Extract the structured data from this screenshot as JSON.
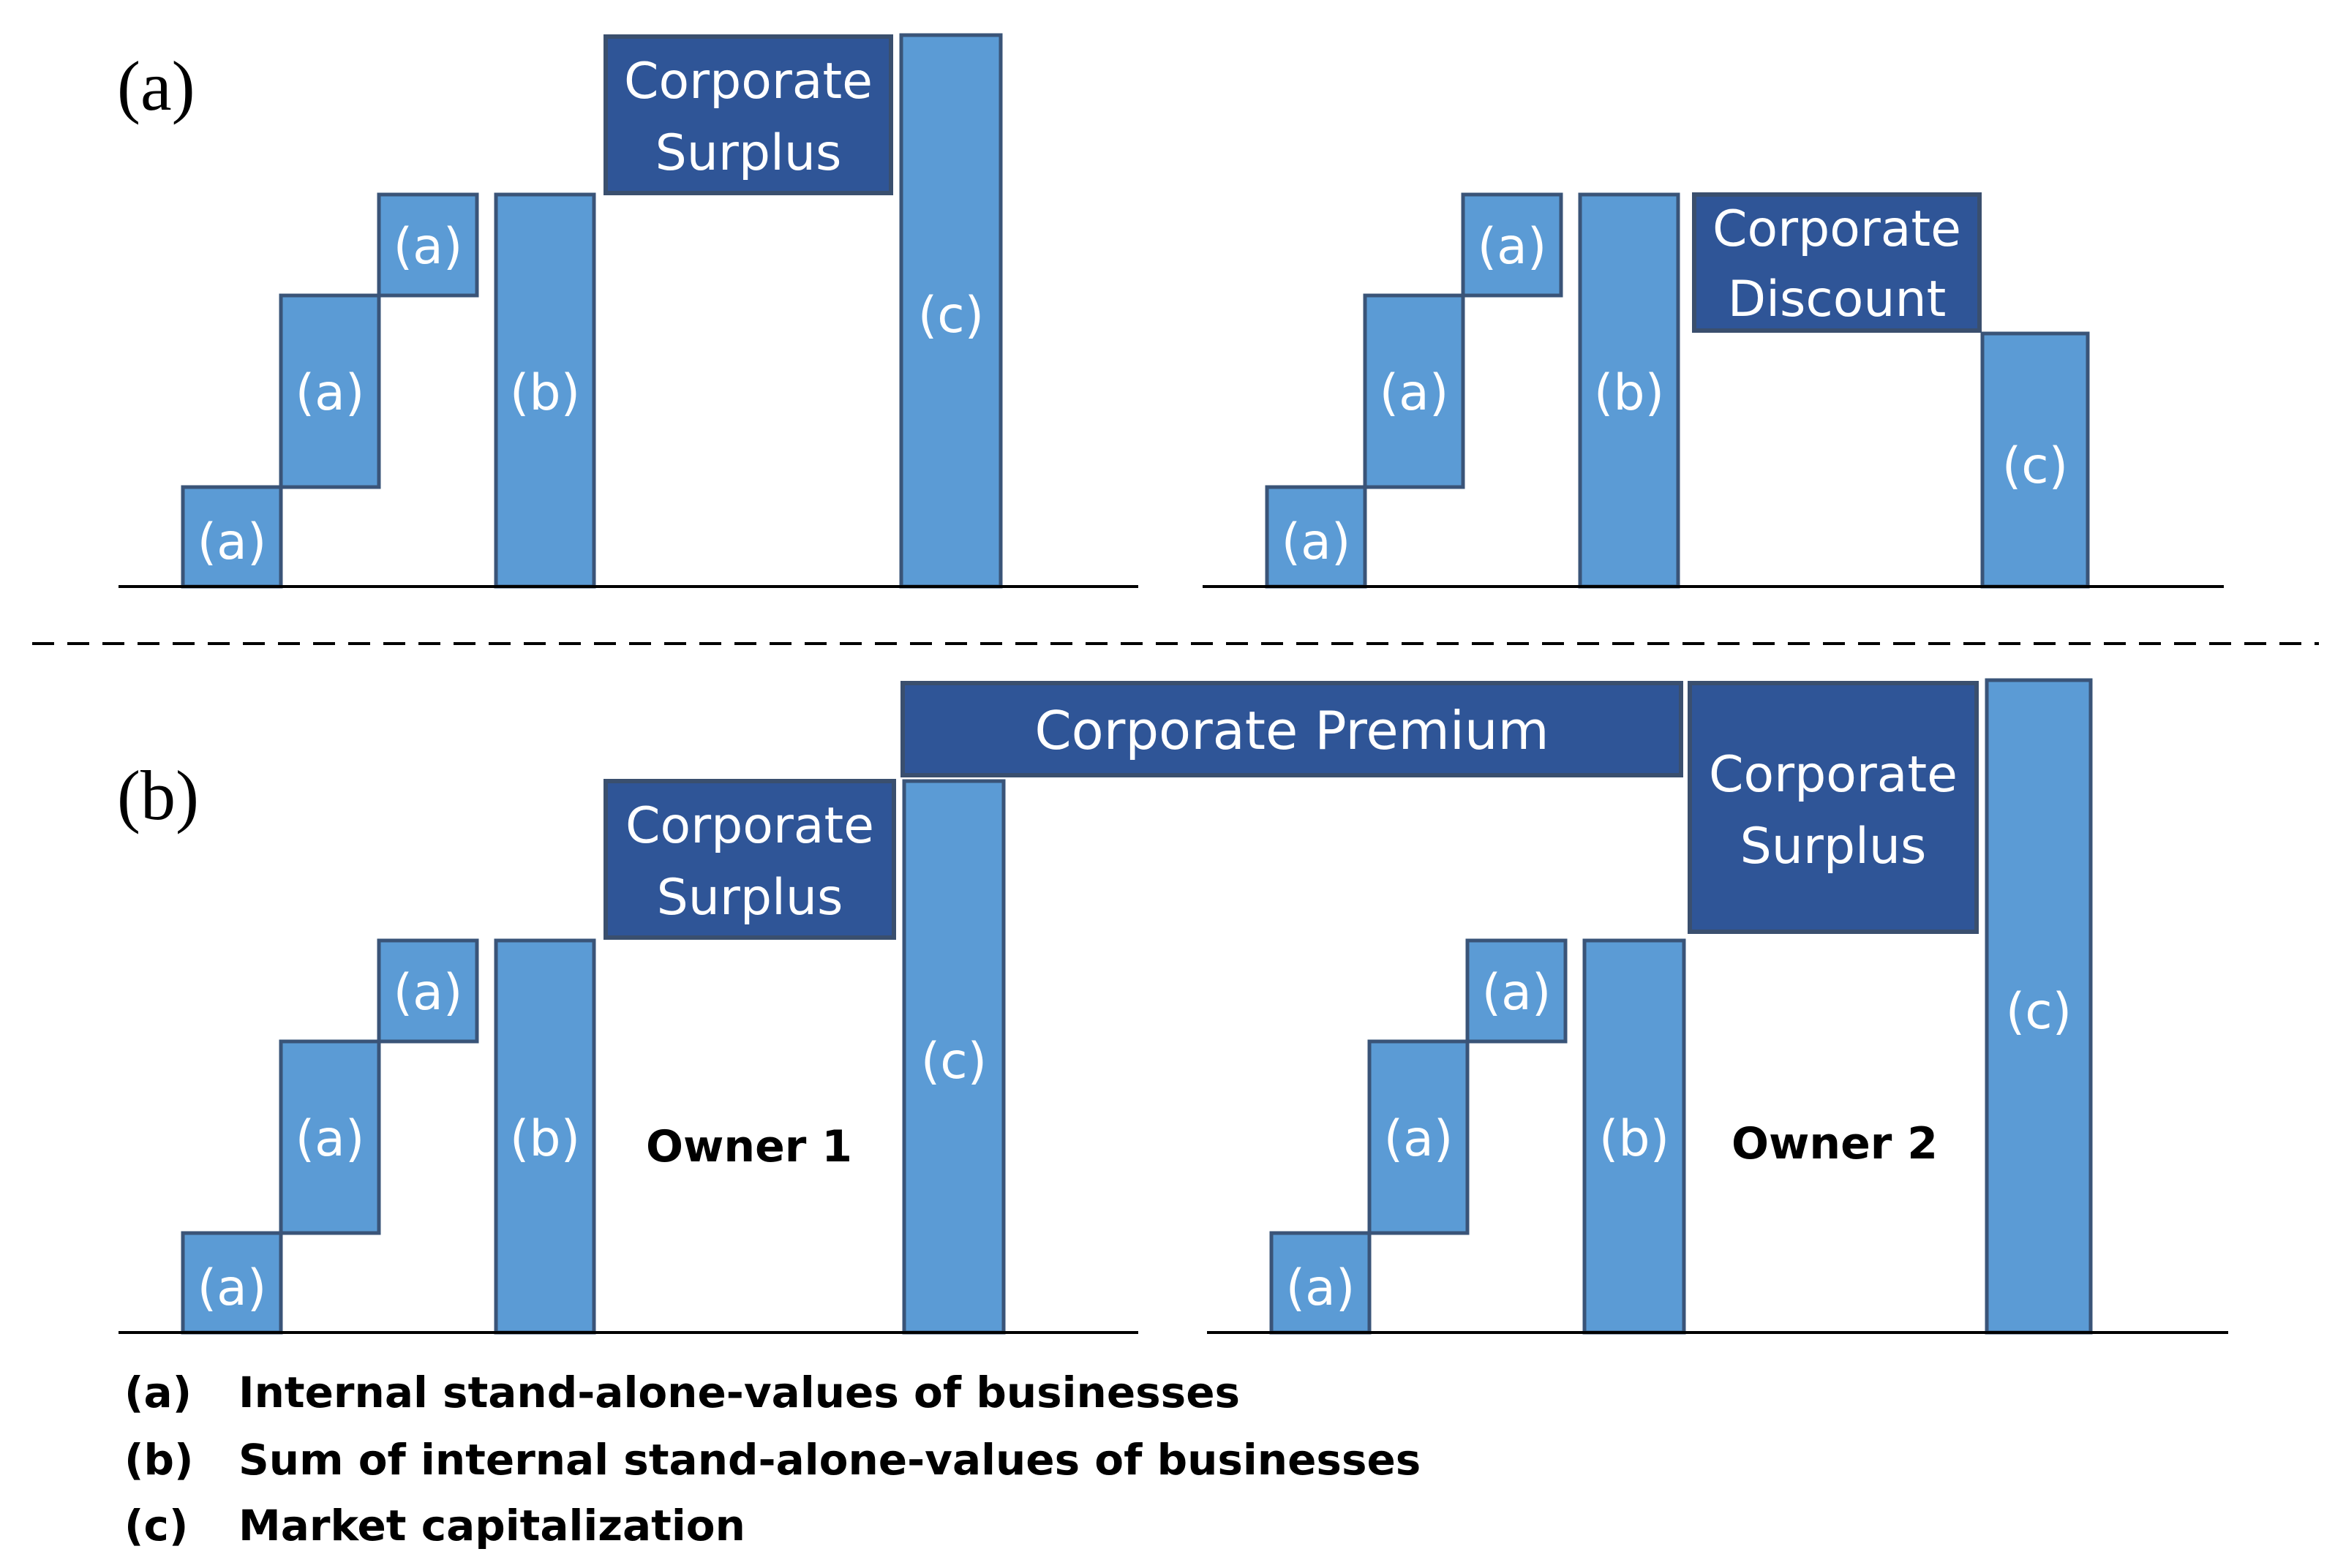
{
  "panel_a": {
    "label": "(a)",
    "left": {
      "bars": [
        "(a)",
        "(a)",
        "(a)",
        "(b)",
        "(c)"
      ],
      "box": [
        "Corporate",
        "Surplus"
      ]
    },
    "right": {
      "bars": [
        "(a)",
        "(a)",
        "(a)",
        "(b)",
        "(c)"
      ],
      "box": [
        "Corporate",
        "Discount"
      ]
    }
  },
  "panel_b": {
    "label": "(b)",
    "premium": "Corporate Premium",
    "owner1": {
      "name": "Owner 1",
      "bars": [
        "(a)",
        "(a)",
        "(a)",
        "(b)",
        "(c)"
      ],
      "box": [
        "Corporate",
        "Surplus"
      ]
    },
    "owner2": {
      "name": "Owner 2",
      "bars": [
        "(a)",
        "(a)",
        "(a)",
        "(b)",
        "(c)"
      ],
      "box": [
        "Corporate",
        "Surplus"
      ]
    }
  },
  "legend": [
    {
      "key": "(a)",
      "text": "Internal stand-alone-values of businesses"
    },
    {
      "key": "(b)",
      "text": "Sum of internal stand-alone-values of businesses"
    },
    {
      "key": "(c)",
      "text": "Market capitalization"
    }
  ],
  "colors": {
    "bar": "#5b9bd5",
    "box": "#2f5597",
    "outline": "#3a5478"
  }
}
